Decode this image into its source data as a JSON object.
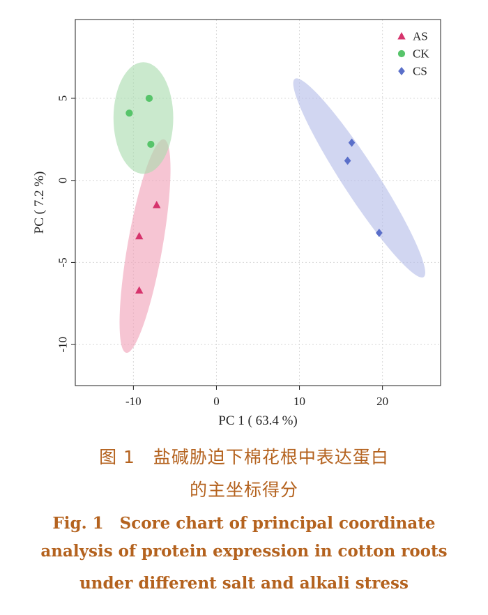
{
  "chart_data": {
    "type": "scatter",
    "xlabel": "PC 1 ( 63.4 %)",
    "ylabel": "PC ( 7.2 %)",
    "xlim": [
      -17,
      27
    ],
    "ylim": [
      -12.5,
      9.8
    ],
    "x_ticks": [
      -10,
      0,
      10,
      20
    ],
    "y_ticks": [
      5,
      0,
      -5,
      -10
    ],
    "x_tick_labels": [
      "-10",
      "0",
      "10",
      "20"
    ],
    "y_tick_labels": [
      "5",
      "0",
      "-5",
      "-10"
    ],
    "grid": true,
    "legend_position": "top-right",
    "series": [
      {
        "name": "AS",
        "marker": "triangle",
        "color": "#d6336c",
        "ellipse_color": "#f0a2b8",
        "points": [
          {
            "x": -7.2,
            "y": -1.5
          },
          {
            "x": -9.3,
            "y": -3.4
          },
          {
            "x": -9.3,
            "y": -6.7
          }
        ],
        "ellipse": {
          "cx": -8.6,
          "cy": -4.0,
          "rx": 2.1,
          "ry": 6.6,
          "angle_deg": 10
        }
      },
      {
        "name": "CK",
        "marker": "circle",
        "color": "#57c46a",
        "ellipse_color": "#a9dcae",
        "points": [
          {
            "x": -8.1,
            "y": 5.0
          },
          {
            "x": -10.5,
            "y": 4.1
          },
          {
            "x": -7.9,
            "y": 2.2
          }
        ],
        "ellipse": {
          "cx": -8.8,
          "cy": 3.8,
          "rx": 3.6,
          "ry": 3.4,
          "angle_deg": 0
        }
      },
      {
        "name": "CS",
        "marker": "diamond",
        "color": "#5a6fc9",
        "ellipse_color": "#b5bde8",
        "points": [
          {
            "x": 16.3,
            "y": 2.3
          },
          {
            "x": 15.8,
            "y": 1.2
          },
          {
            "x": 19.6,
            "y": -3.2
          }
        ],
        "ellipse": {
          "cx": 17.2,
          "cy": 0.15,
          "rx": 2.1,
          "ry": 7.2,
          "angle_deg": -33
        }
      }
    ]
  },
  "caption": {
    "zh_line1": "图 1　盐碱胁迫下棉花根中表达蛋白",
    "zh_line2": "的主坐标得分",
    "en_line1": "Fig. 1　Score chart of principal coordinate",
    "en_line2": "analysis of protein expression in cotton roots",
    "en_line3": "under different salt and alkali stress"
  }
}
